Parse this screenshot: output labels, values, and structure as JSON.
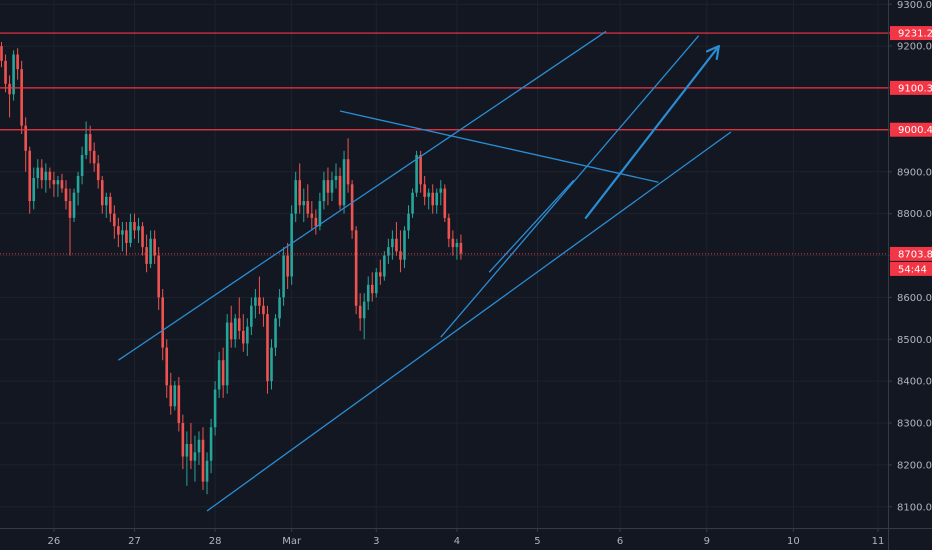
{
  "chart_data": {
    "type": "candlestick",
    "grid": true,
    "y_axis": {
      "position": "right",
      "ylim": [
        8040,
        9340
      ],
      "ticks": [
        8100,
        8200,
        8300,
        8400,
        8500,
        8600,
        8700,
        8800,
        8900,
        9000,
        9100,
        9200,
        9300
      ],
      "tick_labels": [
        "8100.0",
        "8200.0",
        "8300.0",
        "8400.0",
        "8500.0",
        "8600.0",
        "8700.0",
        "8800.0",
        "8900.0",
        "9000.0",
        "9100.0",
        "9200.0",
        "9300.0"
      ]
    },
    "x_axis": {
      "labels": [
        {
          "text": "26",
          "bar": 13
        },
        {
          "text": "27",
          "bar": 33
        },
        {
          "text": "28",
          "bar": 53
        },
        {
          "text": "Mar",
          "bar": 72
        },
        {
          "text": "3",
          "bar": 93
        },
        {
          "text": "4",
          "bar": 113
        },
        {
          "text": "5",
          "bar": 133
        },
        {
          "text": "6",
          "bar": 153.5
        },
        {
          "text": "9",
          "bar": 175
        },
        {
          "text": "10",
          "bar": 196.5
        },
        {
          "text": "11",
          "bar": 217.5
        }
      ]
    },
    "candles": [
      [
        9200,
        9210,
        9150,
        9165
      ],
      [
        9165,
        9180,
        9090,
        9110
      ],
      [
        9110,
        9130,
        9030,
        9085
      ],
      [
        9085,
        9190,
        9070,
        9180
      ],
      [
        9180,
        9195,
        9120,
        9145
      ],
      [
        9145,
        9165,
        8990,
        9010
      ],
      [
        9010,
        9030,
        8900,
        8950
      ],
      [
        8950,
        8960,
        8800,
        8830
      ],
      [
        8830,
        8910,
        8810,
        8885
      ],
      [
        8885,
        8930,
        8860,
        8910
      ],
      [
        8910,
        8930,
        8860,
        8880
      ],
      [
        8880,
        8920,
        8850,
        8900
      ],
      [
        8900,
        8910,
        8860,
        8880
      ],
      [
        8880,
        8900,
        8840,
        8870
      ],
      [
        8870,
        8890,
        8840,
        8880
      ],
      [
        8880,
        8895,
        8850,
        8860
      ],
      [
        8860,
        8880,
        8810,
        8830
      ],
      [
        8830,
        8860,
        8700,
        8790
      ],
      [
        8790,
        8860,
        8780,
        8850
      ],
      [
        8850,
        8900,
        8820,
        8890
      ],
      [
        8890,
        8960,
        8870,
        8940
      ],
      [
        8940,
        9020,
        8930,
        8990
      ],
      [
        8990,
        9010,
        8920,
        8950
      ],
      [
        8950,
        8970,
        8900,
        8920
      ],
      [
        8920,
        8940,
        8860,
        8880
      ],
      [
        8880,
        8890,
        8800,
        8820
      ],
      [
        8820,
        8850,
        8790,
        8840
      ],
      [
        8840,
        8850,
        8780,
        8800
      ],
      [
        8800,
        8820,
        8740,
        8770
      ],
      [
        8770,
        8790,
        8720,
        8750
      ],
      [
        8750,
        8780,
        8710,
        8760
      ],
      [
        8760,
        8780,
        8700,
        8730
      ],
      [
        8730,
        8800,
        8720,
        8780
      ],
      [
        8780,
        8800,
        8740,
        8760
      ],
      [
        8760,
        8790,
        8730,
        8770
      ],
      [
        8770,
        8780,
        8700,
        8720
      ],
      [
        8720,
        8750,
        8660,
        8680
      ],
      [
        8680,
        8760,
        8670,
        8740
      ],
      [
        8740,
        8760,
        8680,
        8700
      ],
      [
        8700,
        8720,
        8570,
        8600
      ],
      [
        8600,
        8620,
        8450,
        8480
      ],
      [
        8480,
        8500,
        8360,
        8390
      ],
      [
        8390,
        8420,
        8320,
        8340
      ],
      [
        8340,
        8400,
        8330,
        8390
      ],
      [
        8390,
        8410,
        8280,
        8300
      ],
      [
        8300,
        8320,
        8190,
        8220
      ],
      [
        8220,
        8280,
        8150,
        8250
      ],
      [
        8250,
        8300,
        8190,
        8210
      ],
      [
        8210,
        8270,
        8160,
        8230
      ],
      [
        8230,
        8280,
        8200,
        8260
      ],
      [
        8260,
        8290,
        8140,
        8160
      ],
      [
        8160,
        8230,
        8130,
        8210
      ],
      [
        8210,
        8310,
        8180,
        8290
      ],
      [
        8290,
        8400,
        8270,
        8380
      ],
      [
        8380,
        8470,
        8360,
        8450
      ],
      [
        8450,
        8480,
        8360,
        8390
      ],
      [
        8390,
        8560,
        8370,
        8540
      ],
      [
        8540,
        8580,
        8480,
        8500
      ],
      [
        8500,
        8560,
        8480,
        8550
      ],
      [
        8550,
        8600,
        8500,
        8520
      ],
      [
        8520,
        8560,
        8470,
        8490
      ],
      [
        8490,
        8550,
        8460,
        8530
      ],
      [
        8530,
        8600,
        8510,
        8580
      ],
      [
        8580,
        8620,
        8550,
        8600
      ],
      [
        8600,
        8650,
        8560,
        8580
      ],
      [
        8580,
        8600,
        8530,
        8560
      ],
      [
        8560,
        8580,
        8370,
        8400
      ],
      [
        8400,
        8500,
        8380,
        8480
      ],
      [
        8480,
        8560,
        8460,
        8550
      ],
      [
        8550,
        8620,
        8530,
        8600
      ],
      [
        8600,
        8720,
        8580,
        8700
      ],
      [
        8700,
        8730,
        8620,
        8650
      ],
      [
        8650,
        8820,
        8630,
        8800
      ],
      [
        8800,
        8900,
        8780,
        8880
      ],
      [
        8880,
        8920,
        8800,
        8820
      ],
      [
        8820,
        8860,
        8780,
        8830
      ],
      [
        8830,
        8870,
        8790,
        8800
      ],
      [
        8800,
        8830,
        8760,
        8790
      ],
      [
        8790,
        8810,
        8750,
        8770
      ],
      [
        8770,
        8850,
        8760,
        8830
      ],
      [
        8830,
        8900,
        8810,
        8880
      ],
      [
        8880,
        8910,
        8820,
        8850
      ],
      [
        8850,
        8900,
        8830,
        8880
      ],
      [
        8880,
        8920,
        8860,
        8890
      ],
      [
        8890,
        8910,
        8810,
        8820
      ],
      [
        8820,
        8950,
        8800,
        8930
      ],
      [
        8930,
        8980,
        8850,
        8870
      ],
      [
        8870,
        8880,
        8740,
        8760
      ],
      [
        8760,
        8770,
        8560,
        8580
      ],
      [
        8580,
        8610,
        8520,
        8550
      ],
      [
        8550,
        8610,
        8500,
        8590
      ],
      [
        8590,
        8650,
        8570,
        8630
      ],
      [
        8630,
        8660,
        8590,
        8610
      ],
      [
        8610,
        8670,
        8600,
        8660
      ],
      [
        8660,
        8690,
        8630,
        8650
      ],
      [
        8650,
        8710,
        8640,
        8700
      ],
      [
        8700,
        8740,
        8680,
        8720
      ],
      [
        8720,
        8760,
        8690,
        8740
      ],
      [
        8740,
        8780,
        8700,
        8710
      ],
      [
        8710,
        8760,
        8660,
        8690
      ],
      [
        8690,
        8770,
        8670,
        8760
      ],
      [
        8760,
        8820,
        8740,
        8800
      ],
      [
        8800,
        8860,
        8790,
        8850
      ],
      [
        8850,
        8950,
        8840,
        8940
      ],
      [
        8940,
        8950,
        8850,
        8870
      ],
      [
        8870,
        8890,
        8820,
        8840
      ],
      [
        8840,
        8860,
        8810,
        8850
      ],
      [
        8850,
        8870,
        8800,
        8820
      ],
      [
        8820,
        8860,
        8800,
        8850
      ],
      [
        8850,
        8880,
        8820,
        8860
      ],
      [
        8860,
        8870,
        8780,
        8790
      ],
      [
        8790,
        8800,
        8720,
        8740
      ],
      [
        8740,
        8760,
        8700,
        8720
      ],
      [
        8720,
        8740,
        8690,
        8730
      ],
      [
        8730,
        8750,
        8690,
        8705
      ]
    ],
    "horizontal_levels": [
      {
        "value": 9231.2,
        "label": "9231.2",
        "color": "#f23645"
      },
      {
        "value": 9100.3,
        "label": "9100.3",
        "color": "#f23645"
      },
      {
        "value": 9000.4,
        "label": "9000.4",
        "color": "#f23645"
      }
    ],
    "last_price": {
      "value": 8703.8,
      "label": "8703.8",
      "countdown": "54:44",
      "color": "#f23645"
    },
    "trendlines": [
      {
        "from": {
          "bar": 29,
          "price": 8450
        },
        "to": {
          "bar": 150,
          "price": 9235
        }
      },
      {
        "from": {
          "bar": 51,
          "price": 8090
        },
        "to": {
          "bar": 181,
          "price": 8995
        }
      },
      {
        "from": {
          "bar": 84,
          "price": 9045
        },
        "to": {
          "bar": 163,
          "price": 8875
        }
      },
      {
        "from": {
          "bar": 109,
          "price": 8505
        },
        "to": {
          "bar": 173,
          "price": 9225
        }
      },
      {
        "from": {
          "bar": 121,
          "price": 8660
        },
        "to": {
          "bar": 142,
          "price": 8880
        }
      }
    ],
    "arrow": {
      "from": {
        "bar": 145,
        "price": 8790
      },
      "to": {
        "bar": 178,
        "price": 9200
      },
      "color": "#2a8dd4"
    },
    "colors": {
      "up": "#26a69a",
      "down": "#ef5350",
      "background": "#131722",
      "grid": "#1e222d",
      "trend": "#2a8dd4"
    }
  }
}
